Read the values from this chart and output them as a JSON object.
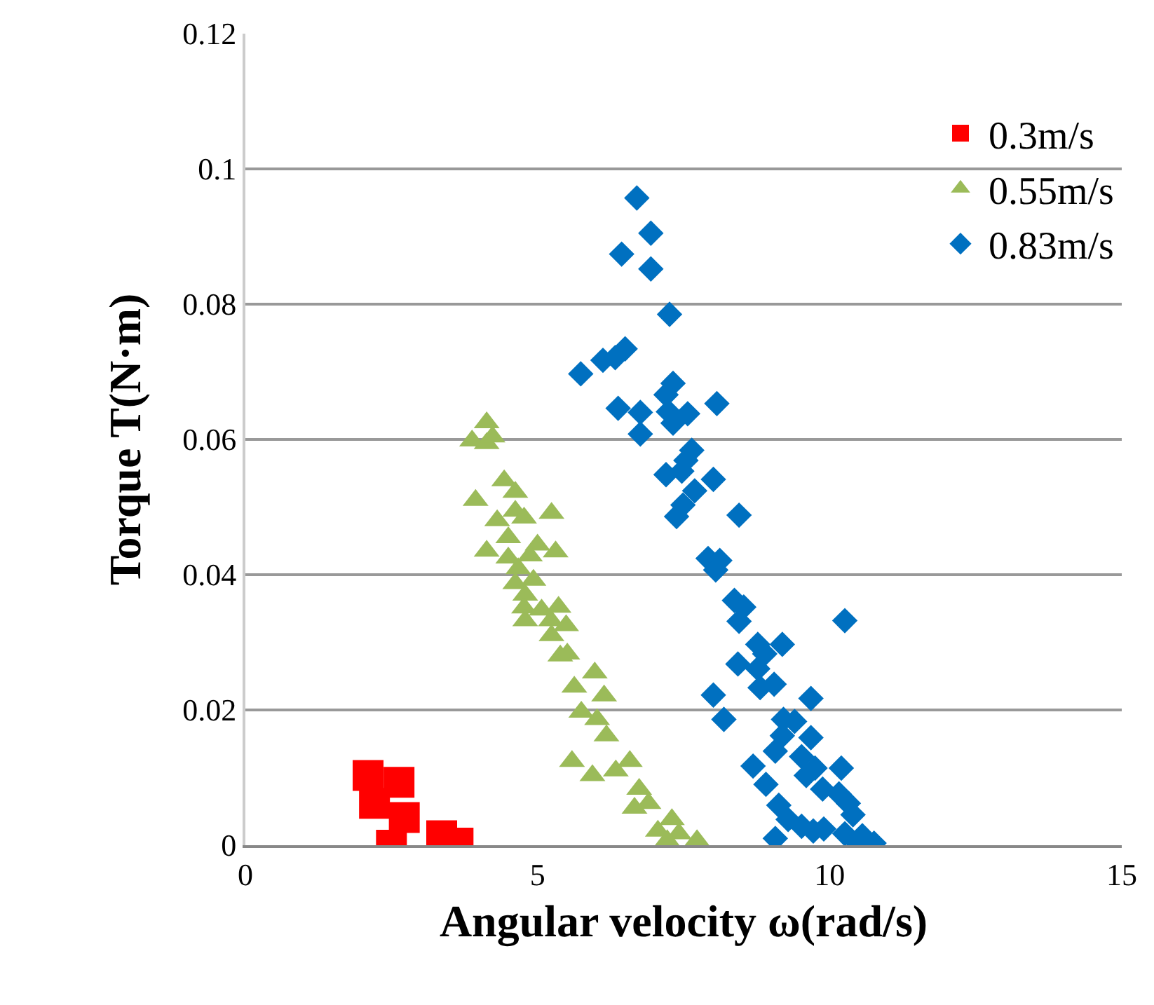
{
  "chart_data": {
    "type": "scatter",
    "xlabel": "Angular velocity ω(rad/s)",
    "ylabel": "Torque T(N·m)",
    "xlim": [
      0,
      15
    ],
    "xticks": [
      0,
      5,
      10,
      15
    ],
    "ylim": [
      0,
      0.12
    ],
    "yticks": [
      0,
      0.02,
      0.04,
      0.06,
      0.08,
      0.1,
      0.12
    ],
    "grid": "y",
    "legend": "top right",
    "series": [
      {
        "name": "0.3m/s",
        "color": "#ff0000",
        "marker": "square",
        "x": [
          2.1,
          2.63,
          2.21,
          2.72,
          2.5,
          3.36,
          3.64
        ],
        "values": [
          0.0103,
          0.0093,
          0.0062,
          0.0041,
          0.0,
          0.0014,
          0.0003
        ]
      },
      {
        "name": "0.55m/s",
        "color": "#9bbb59",
        "marker": "triangle",
        "x": [
          4.13,
          3.88,
          4.13,
          4.23,
          4.43,
          4.62,
          3.94,
          4.62,
          4.77,
          5.24,
          4.31,
          4.5,
          5.0,
          4.13,
          5.31,
          4.5,
          4.87,
          4.67,
          4.93,
          4.62,
          4.79,
          4.77,
          5.07,
          5.36,
          4.79,
          5.23,
          5.49,
          5.24,
          5.39,
          5.51,
          5.98,
          5.63,
          6.14,
          5.75,
          6.02,
          6.18,
          5.59,
          5.94,
          6.34,
          6.58,
          6.74,
          6.9,
          6.66,
          7.3,
          7.06,
          7.42,
          7.73,
          7.22
        ],
        "values": [
          0.0625,
          0.0598,
          0.0594,
          0.0604,
          0.0539,
          0.0522,
          0.051,
          0.0494,
          0.0484,
          0.0491,
          0.048,
          0.0455,
          0.0444,
          0.0435,
          0.0434,
          0.0425,
          0.0428,
          0.0409,
          0.0392,
          0.0387,
          0.037,
          0.0351,
          0.0348,
          0.0352,
          0.0332,
          0.0332,
          0.0325,
          0.031,
          0.028,
          0.0283,
          0.0255,
          0.0234,
          0.0221,
          0.0197,
          0.0186,
          0.0162,
          0.0124,
          0.0103,
          0.011,
          0.0124,
          0.0083,
          0.0062,
          0.0055,
          0.0038,
          0.0021,
          0.0017,
          0.0007,
          0.0007
        ]
      },
      {
        "name": "0.83m/s",
        "color": "#0070c0",
        "marker": "diamond",
        "x": [
          6.7,
          6.94,
          6.44,
          6.94,
          7.26,
          6.5,
          6.33,
          6.12,
          5.74,
          7.32,
          7.2,
          8.07,
          6.38,
          6.76,
          7.24,
          7.57,
          7.32,
          6.76,
          7.64,
          7.54,
          7.2,
          7.47,
          8.01,
          7.69,
          7.49,
          7.38,
          8.45,
          7.92,
          8.12,
          8.05,
          8.37,
          8.53,
          8.45,
          10.26,
          8.77,
          9.19,
          8.89,
          8.43,
          8.77,
          8.81,
          9.05,
          9.68,
          8.01,
          8.19,
          9.21,
          9.4,
          9.19,
          9.68,
          9.07,
          9.52,
          9.75,
          10.2,
          8.69,
          8.91,
          9.6,
          9.88,
          10.16,
          9.13,
          10.32,
          9.29,
          10.4,
          9.52,
          9.72,
          9.9,
          10.26,
          9.07,
          10.56,
          10.76,
          10.48
        ],
        "values": [
          0.0957,
          0.0905,
          0.0874,
          0.0852,
          0.0785,
          0.0734,
          0.0721,
          0.0717,
          0.0697,
          0.0683,
          0.0666,
          0.0653,
          0.0646,
          0.064,
          0.0641,
          0.0638,
          0.0624,
          0.0608,
          0.0584,
          0.0569,
          0.0548,
          0.0553,
          0.0541,
          0.0524,
          0.0503,
          0.0486,
          0.0488,
          0.0424,
          0.0421,
          0.0407,
          0.0362,
          0.0352,
          0.0331,
          0.0332,
          0.0297,
          0.0297,
          0.0283,
          0.0268,
          0.0261,
          0.0233,
          0.0238,
          0.0217,
          0.0222,
          0.0186,
          0.0186,
          0.0183,
          0.0162,
          0.0159,
          0.0139,
          0.0131,
          0.0114,
          0.0114,
          0.0117,
          0.009,
          0.0103,
          0.0083,
          0.0076,
          0.0059,
          0.0062,
          0.0038,
          0.0045,
          0.0028,
          0.0021,
          0.0024,
          0.0017,
          0.001,
          0.0014,
          0.0003,
          0.0003
        ]
      }
    ]
  }
}
